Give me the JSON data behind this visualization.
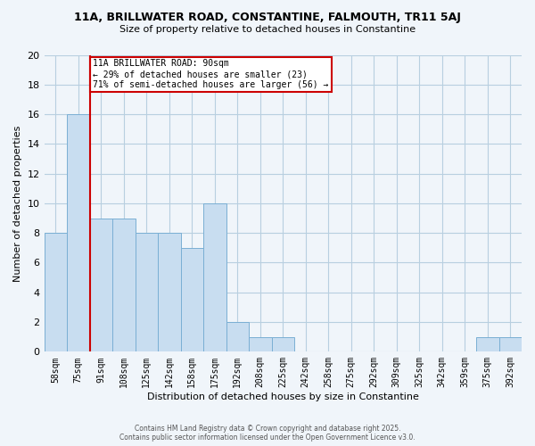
{
  "title1": "11A, BRILLWATER ROAD, CONSTANTINE, FALMOUTH, TR11 5AJ",
  "title2": "Size of property relative to detached houses in Constantine",
  "xlabel": "Distribution of detached houses by size in Constantine",
  "ylabel": "Number of detached properties",
  "bar_color": "#c8ddf0",
  "bar_edge_color": "#7aafd4",
  "marker_color": "#cc0000",
  "categories": [
    "58sqm",
    "75sqm",
    "91sqm",
    "108sqm",
    "125sqm",
    "142sqm",
    "158sqm",
    "175sqm",
    "192sqm",
    "208sqm",
    "225sqm",
    "242sqm",
    "258sqm",
    "275sqm",
    "292sqm",
    "309sqm",
    "325sqm",
    "342sqm",
    "359sqm",
    "375sqm",
    "392sqm"
  ],
  "values": [
    8,
    16,
    9,
    9,
    8,
    8,
    7,
    10,
    2,
    1,
    1,
    0,
    0,
    0,
    0,
    0,
    0,
    0,
    0,
    1,
    1
  ],
  "ylim": [
    0,
    20
  ],
  "yticks": [
    0,
    2,
    4,
    6,
    8,
    10,
    12,
    14,
    16,
    18,
    20
  ],
  "annotation_title": "11A BRILLWATER ROAD: 90sqm",
  "annotation_line1": "← 29% of detached houses are smaller (23)",
  "annotation_line2": "71% of semi-detached houses are larger (56) →",
  "footer1": "Contains HM Land Registry data © Crown copyright and database right 2025.",
  "footer2": "Contains public sector information licensed under the Open Government Licence v3.0.",
  "bg_color": "#f0f5fa",
  "grid_color": "#b8cfe0"
}
